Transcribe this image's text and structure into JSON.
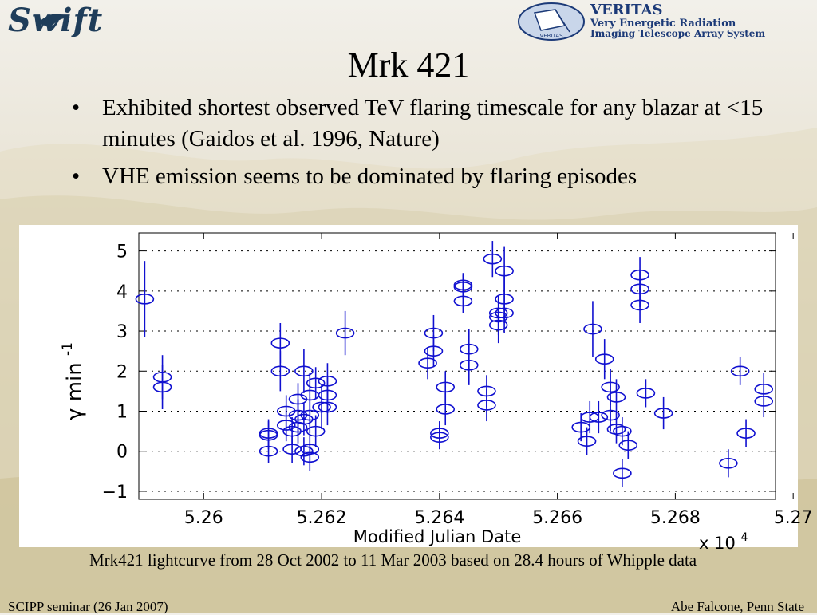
{
  "logos": {
    "swift": {
      "text": "Swift"
    },
    "veritas": {
      "title": "VERITAS",
      "line1": "Very Energetic Radiation",
      "line2": "Imaging Telescope Array System",
      "emblem_label": "VERITAS"
    }
  },
  "slide": {
    "title": "Mrk 421",
    "bullets": [
      "Exhibited shortest observed TeV flaring timescale for any blazar at <15 minutes (Gaidos et al. 1996, Nature)",
      "VHE emission seems to be dominated by flaring episodes"
    ],
    "caption": "Mrk421 lightcurve from 28 Oct 2002 to 11 Mar 2003 based on 28.4 hours of Whipple data",
    "footer_left": "SCIPP seminar (26 Jan 2007)",
    "footer_right": "Abe Falcone, Penn State"
  },
  "colors": {
    "series": "#1010d0",
    "text": "#000000"
  },
  "chart_data": {
    "type": "scatter",
    "xlabel": "Modified Julian Date",
    "x_multiplier": "x 10",
    "x_multiplier_exp": "4",
    "ylabel": "γ min",
    "ylabel_exp": "-1",
    "xlim": [
      52589,
      52697
    ],
    "ylim": [
      -1.2,
      5.45
    ],
    "grid": "horizontal dotted",
    "xticks": [
      5.26,
      5.262,
      5.264,
      5.266,
      5.268,
      5.27
    ],
    "xtick_labels": [
      "5.26",
      "5.262",
      "5.264",
      "5.266",
      "5.268",
      "5.27"
    ],
    "yticks": [
      -1,
      0,
      1,
      2,
      3,
      4,
      5
    ],
    "ytick_labels": [
      "−1",
      "0",
      "1",
      "2",
      "3",
      "4",
      "5"
    ],
    "points": [
      {
        "x": 52590.0,
        "y": 3.8,
        "err": 0.95
      },
      {
        "x": 52593.0,
        "y": 1.85,
        "err": 0.55
      },
      {
        "x": 52593.0,
        "y": 1.6,
        "err": 0.55
      },
      {
        "x": 52611.0,
        "y": 0.45,
        "err": 0.35
      },
      {
        "x": 52611.0,
        "y": 0.4,
        "err": 0.35
      },
      {
        "x": 52611.0,
        "y": 0.0,
        "err": 0.3
      },
      {
        "x": 52613.0,
        "y": 2.7,
        "err": 0.5
      },
      {
        "x": 52613.0,
        "y": 2.0,
        "err": 0.5
      },
      {
        "x": 52614.0,
        "y": 1.0,
        "err": 0.4
      },
      {
        "x": 52614.0,
        "y": 0.65,
        "err": 0.4
      },
      {
        "x": 52615.0,
        "y": 0.05,
        "err": 0.35
      },
      {
        "x": 52615.0,
        "y": 0.5,
        "err": 0.35
      },
      {
        "x": 52616.0,
        "y": 1.3,
        "err": 0.4
      },
      {
        "x": 52616.0,
        "y": 0.9,
        "err": 0.4
      },
      {
        "x": 52616.0,
        "y": 0.6,
        "err": 0.4
      },
      {
        "x": 52617.0,
        "y": 2.0,
        "err": 0.55
      },
      {
        "x": 52617.0,
        "y": 0.8,
        "err": 0.4
      },
      {
        "x": 52617.0,
        "y": 0.0,
        "err": 0.35
      },
      {
        "x": 52618.0,
        "y": 1.4,
        "err": 0.55
      },
      {
        "x": 52618.0,
        "y": 0.9,
        "err": 0.45
      },
      {
        "x": 52618.0,
        "y": 0.05,
        "err": 0.35
      },
      {
        "x": 52618.0,
        "y": -0.15,
        "err": 0.35
      },
      {
        "x": 52619.0,
        "y": 0.5,
        "err": 0.4
      },
      {
        "x": 52619.0,
        "y": 1.7,
        "err": 0.4
      },
      {
        "x": 52620.0,
        "y": 1.1,
        "err": 0.55
      },
      {
        "x": 52621.0,
        "y": 1.75,
        "err": 0.45
      },
      {
        "x": 52621.0,
        "y": 1.4,
        "err": 0.45
      },
      {
        "x": 52621.0,
        "y": 1.1,
        "err": 0.45
      },
      {
        "x": 52624.0,
        "y": 2.95,
        "err": 0.55
      },
      {
        "x": 52638.0,
        "y": 2.2,
        "err": 0.4
      },
      {
        "x": 52639.0,
        "y": 2.95,
        "err": 0.45
      },
      {
        "x": 52639.0,
        "y": 2.5,
        "err": 0.4
      },
      {
        "x": 52640.0,
        "y": 0.45,
        "err": 0.3
      },
      {
        "x": 52640.0,
        "y": 0.35,
        "err": 0.3
      },
      {
        "x": 52641.0,
        "y": 1.6,
        "err": 0.4
      },
      {
        "x": 52641.0,
        "y": 1.05,
        "err": 0.4
      },
      {
        "x": 52644.0,
        "y": 4.15,
        "err": 0.3
      },
      {
        "x": 52644.0,
        "y": 4.1,
        "err": 0.3
      },
      {
        "x": 52644.0,
        "y": 3.75,
        "err": 0.3
      },
      {
        "x": 52645.0,
        "y": 2.55,
        "err": 0.5
      },
      {
        "x": 52645.0,
        "y": 2.15,
        "err": 0.5
      },
      {
        "x": 52648.0,
        "y": 1.5,
        "err": 0.4
      },
      {
        "x": 52648.0,
        "y": 1.15,
        "err": 0.4
      },
      {
        "x": 52649.0,
        "y": 4.8,
        "err": 0.45
      },
      {
        "x": 52650.0,
        "y": 3.45,
        "err": 0.45
      },
      {
        "x": 52650.0,
        "y": 3.35,
        "err": 0.45
      },
      {
        "x": 52650.0,
        "y": 3.15,
        "err": 0.45
      },
      {
        "x": 52651.0,
        "y": 3.8,
        "err": 0.6
      },
      {
        "x": 52651.0,
        "y": 4.5,
        "err": 0.6
      },
      {
        "x": 52651.0,
        "y": 3.45,
        "err": 0.5
      },
      {
        "x": 52664.0,
        "y": 0.6,
        "err": 0.35
      },
      {
        "x": 52665.0,
        "y": 0.25,
        "err": 0.35
      },
      {
        "x": 52665.5,
        "y": 0.85,
        "err": 0.4
      },
      {
        "x": 52666.0,
        "y": 3.05,
        "err": 0.7
      },
      {
        "x": 52667.0,
        "y": 0.85,
        "err": 0.4
      },
      {
        "x": 52668.0,
        "y": 2.3,
        "err": 0.5
      },
      {
        "x": 52669.0,
        "y": 0.9,
        "err": 0.4
      },
      {
        "x": 52669.0,
        "y": 1.6,
        "err": 0.45
      },
      {
        "x": 52670.0,
        "y": 0.55,
        "err": 0.35
      },
      {
        "x": 52670.0,
        "y": 1.35,
        "err": 0.45
      },
      {
        "x": 52671.0,
        "y": 0.5,
        "err": 0.35
      },
      {
        "x": 52671.0,
        "y": -0.55,
        "err": 0.35
      },
      {
        "x": 52672.0,
        "y": 0.15,
        "err": 0.35
      },
      {
        "x": 52674.0,
        "y": 4.4,
        "err": 0.45
      },
      {
        "x": 52674.0,
        "y": 4.05,
        "err": 0.45
      },
      {
        "x": 52674.0,
        "y": 3.65,
        "err": 0.45
      },
      {
        "x": 52675.0,
        "y": 1.45,
        "err": 0.35
      },
      {
        "x": 52678.0,
        "y": 0.95,
        "err": 0.4
      },
      {
        "x": 52689.0,
        "y": -0.3,
        "err": 0.35
      },
      {
        "x": 52691.0,
        "y": 2.0,
        "err": 0.35
      },
      {
        "x": 52692.0,
        "y": 0.45,
        "err": 0.35
      },
      {
        "x": 52695.0,
        "y": 1.55,
        "err": 0.4
      },
      {
        "x": 52695.0,
        "y": 1.25,
        "err": 0.4
      }
    ]
  }
}
